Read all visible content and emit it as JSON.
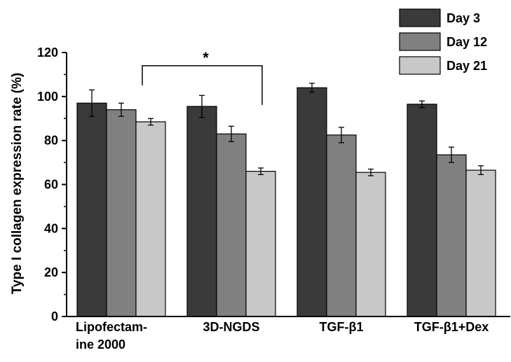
{
  "chart_data": {
    "type": "bar",
    "ylabel": "Type I collagen expression rate (%)",
    "ylim": [
      0,
      120
    ],
    "yticks": [
      0,
      20,
      40,
      60,
      80,
      100,
      120
    ],
    "categories": [
      [
        "Lipofectam-",
        "ine 2000"
      ],
      [
        "3D-NGDS"
      ],
      [
        "TGF-β1"
      ],
      [
        "TGF-β1+Dex"
      ]
    ],
    "series": [
      {
        "name": "Day 3",
        "color": "#3a3a3a",
        "values": [
          97,
          95.5,
          104,
          96.5
        ],
        "errors": [
          6,
          5,
          2,
          1.5
        ]
      },
      {
        "name": "Day 12",
        "color": "#808080",
        "values": [
          94,
          83,
          82.5,
          73.5
        ],
        "errors": [
          3,
          3.5,
          3.5,
          3.5
        ]
      },
      {
        "name": "Day 21",
        "color": "#c8c8c8",
        "values": [
          88.5,
          66,
          65.5,
          66.5
        ],
        "errors": [
          1.5,
          1.5,
          1.5,
          2
        ]
      }
    ],
    "legend_position": "top-right",
    "annotations": [
      {
        "text": "*",
        "from": {
          "category": 0,
          "series": 2
        },
        "to": {
          "category": 1,
          "series": 2
        },
        "y": 114
      }
    ]
  }
}
